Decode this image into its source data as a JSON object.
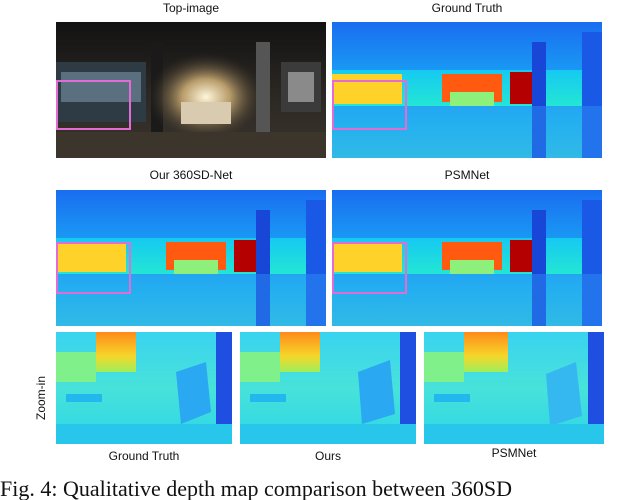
{
  "panels": {
    "top_image": {
      "title": "Top-image"
    },
    "ground_truth": {
      "title": "Ground Truth"
    },
    "ours_full": {
      "title": "Our 360SD-Net"
    },
    "psmnet_full": {
      "title": "PSMNet"
    }
  },
  "zoom": {
    "side_label": "Zoom-in",
    "labels": [
      "Ground Truth",
      "Ours",
      "PSMNet"
    ]
  },
  "caption": "Fig. 4: Qualitative depth map comparison between 360SD",
  "colors": {
    "highlight": "#e36bd6",
    "depth_far": "#1f4fe0",
    "depth_near": "#c00000"
  }
}
